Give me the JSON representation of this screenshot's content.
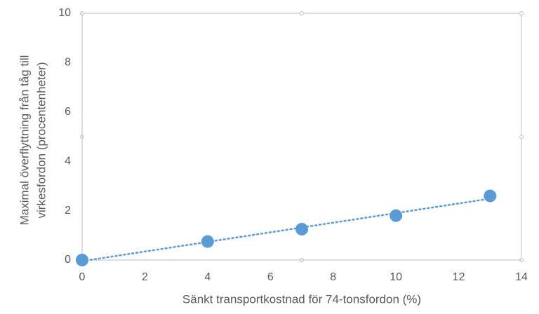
{
  "chart_data": {
    "type": "scatter",
    "xlabel": "Sänkt transportkostnad för 74-tonsfordon (%)",
    "ylabel": [
      "Maximal överflyttning från tåg till",
      "virkesfordon (procentenheter)"
    ],
    "series": [
      {
        "x": [
          0,
          4,
          7,
          10,
          13
        ],
        "values": [
          0,
          0.75,
          1.25,
          1.8,
          2.6
        ],
        "color": "#5b9bd5"
      }
    ],
    "trendline": "linear",
    "xlim": [
      0,
      14
    ],
    "xticks": [
      0,
      2,
      4,
      6,
      8,
      10,
      12,
      14
    ],
    "ylim": [
      0,
      10
    ],
    "yticks": [
      0,
      2,
      4,
      6,
      8,
      10
    ],
    "grid": false
  }
}
